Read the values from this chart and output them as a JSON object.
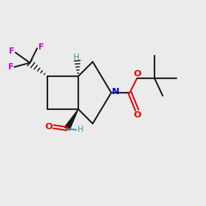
{
  "bg_color": "#ebebeb",
  "bond_color": "#1a1a1a",
  "N_color": "#0000cc",
  "O_color": "#ee0000",
  "F_color": "#cc00cc",
  "H_color": "#4a9090",
  "figsize": [
    3.0,
    3.0
  ],
  "dpi": 100,
  "xlim": [
    0,
    10
  ],
  "ylim": [
    0,
    10
  ]
}
